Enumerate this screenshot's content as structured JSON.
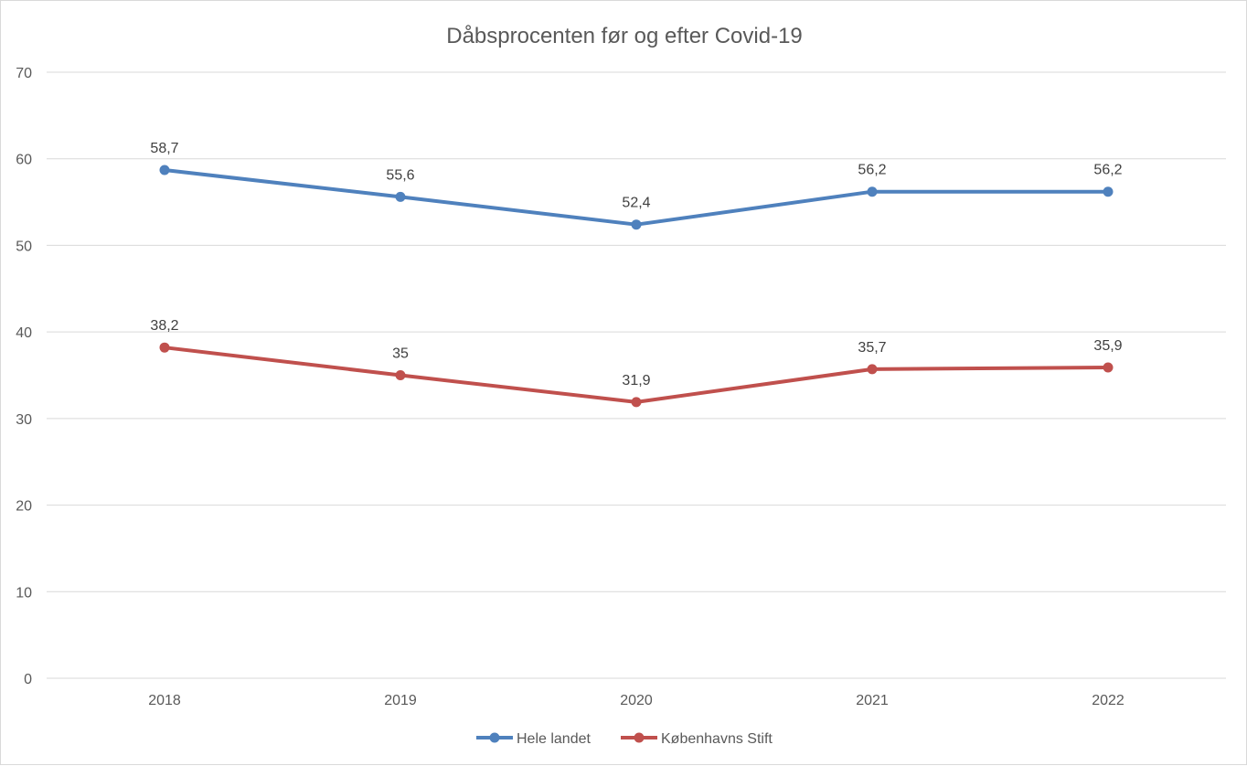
{
  "chart_data": {
    "type": "line",
    "title": "Dåbsprocenten før og efter Covid-19",
    "xlabel": "",
    "ylabel": "",
    "categories": [
      "2018",
      "2019",
      "2020",
      "2021",
      "2022"
    ],
    "ylim": [
      0,
      70
    ],
    "yticks": [
      0,
      10,
      20,
      30,
      40,
      50,
      60,
      70
    ],
    "grid": true,
    "legend_position": "bottom",
    "series": [
      {
        "name": "Hele landet",
        "color": "#4f81bd",
        "values": [
          58.7,
          55.6,
          52.4,
          56.2,
          56.2
        ],
        "labels": [
          "58,7",
          "55,6",
          "52,4",
          "56,2",
          "56,2"
        ]
      },
      {
        "name": "Københavns Stift",
        "color": "#c0504d",
        "values": [
          38.2,
          35,
          31.9,
          35.7,
          35.9
        ],
        "labels": [
          "38,2",
          "35",
          "31,9",
          "35,7",
          "35,9"
        ]
      }
    ]
  }
}
